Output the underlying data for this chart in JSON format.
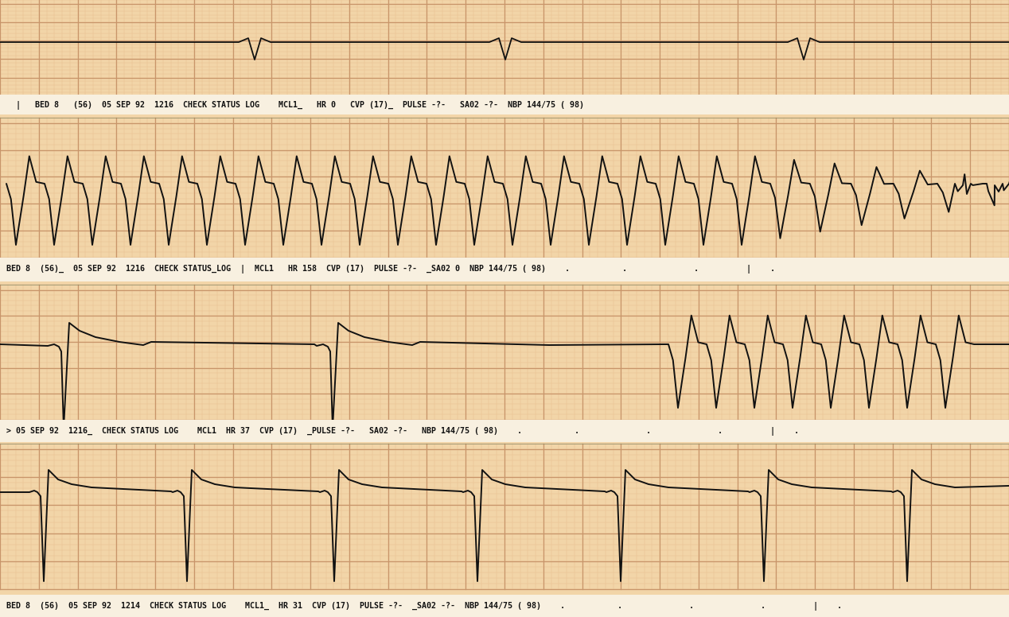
{
  "bg_color": "#f2d5a8",
  "grid_minor_color": "#e8c090",
  "grid_major_color": "#c8956a",
  "ecg_color": "#111111",
  "text_color": "#111111",
  "header1": "BED 8  (56)  05 SEP 92  1214  CHECK STATUS LOG    MCL1_  HR 31  CVP (17)  PULSE -?-  _SA02 -?-  NBP 144/75 ( 98)    .           .              .              .          |    .",
  "header2": "> 05 SEP 92  1216_  CHECK STATUS LOG    MCL1  HR 37  CVP (17)  _PULSE -?-   SA02 -?-   NBP 144/75 ( 98)    .           .              .              .          |    .",
  "header3": "BED 8  (56)_  05 SEP 92  1216  CHECK STATUS_LOG  |  MCL1   HR 158  CVP (17)  PULSE -?-  _SA02 0  NBP 144/75 ( 98)    .           .              .          |    .",
  "header4": "  |   BED 8   (56)  05 SEP 92  1216  CHECK STATUS LOG    MCL1_   HR 0   CVP (17)_  PULSE -?-   SA02 -?-  NBP 144/75 ( 98)"
}
